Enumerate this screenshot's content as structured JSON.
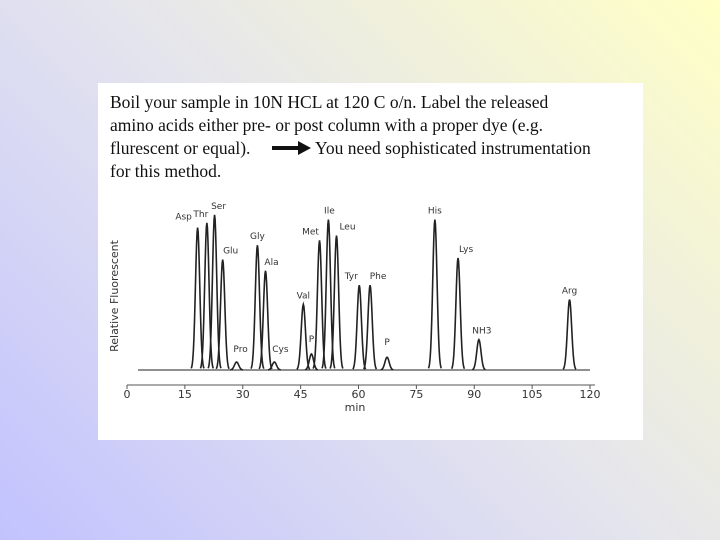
{
  "slide": {
    "body": [
      "Boil your sample in 10N HCL at 120 C o/n. Label the released",
      "amino acids either pre- or post column with a proper dye (e.g.",
      "flurescent or equal)."
    ],
    "arrow_text": [
      "You need sophisticated instrumentation",
      "for this method."
    ]
  },
  "chart_data": {
    "type": "chromatogram",
    "x_label": "min",
    "y_label": "Relative Fluorescent",
    "xlim": [
      0,
      120
    ],
    "xticks": [
      0,
      15,
      30,
      45,
      60,
      75,
      90,
      105,
      120
    ],
    "ylim": [
      0,
      100
    ],
    "color": "#222222",
    "peaks": [
      {
        "label": "Asp",
        "x": 18.3,
        "height": 89
      },
      {
        "label": "Thr",
        "x": 20.7,
        "height": 92
      },
      {
        "label": "Ser",
        "x": 22.7,
        "height": 97
      },
      {
        "label": "Glu",
        "x": 24.8,
        "height": 69
      },
      {
        "label": "Pro",
        "x": 28.4,
        "height": 5
      },
      {
        "label": "Gly",
        "x": 33.8,
        "height": 78
      },
      {
        "label": "Ala",
        "x": 35.9,
        "height": 62
      },
      {
        "label": "Cys",
        "x": 38.2,
        "height": 5
      },
      {
        "label": "Val",
        "x": 45.7,
        "height": 41
      },
      {
        "label": "P",
        "x": 47.8,
        "height": 10
      },
      {
        "label": "Met",
        "x": 49.9,
        "height": 81
      },
      {
        "label": "Ile",
        "x": 52.2,
        "height": 94
      },
      {
        "label": "Leu",
        "x": 54.3,
        "height": 84
      },
      {
        "label": "Tyr",
        "x": 60.2,
        "height": 53
      },
      {
        "label": "Phe",
        "x": 63.0,
        "height": 53
      },
      {
        "label": "P",
        "x": 67.4,
        "height": 8
      },
      {
        "label": "His",
        "x": 79.8,
        "height": 94
      },
      {
        "label": "Lys",
        "x": 85.8,
        "height": 70
      },
      {
        "label": "NH3",
        "x": 91.2,
        "height": 19
      },
      {
        "label": "Arg",
        "x": 114.7,
        "height": 44
      }
    ]
  }
}
